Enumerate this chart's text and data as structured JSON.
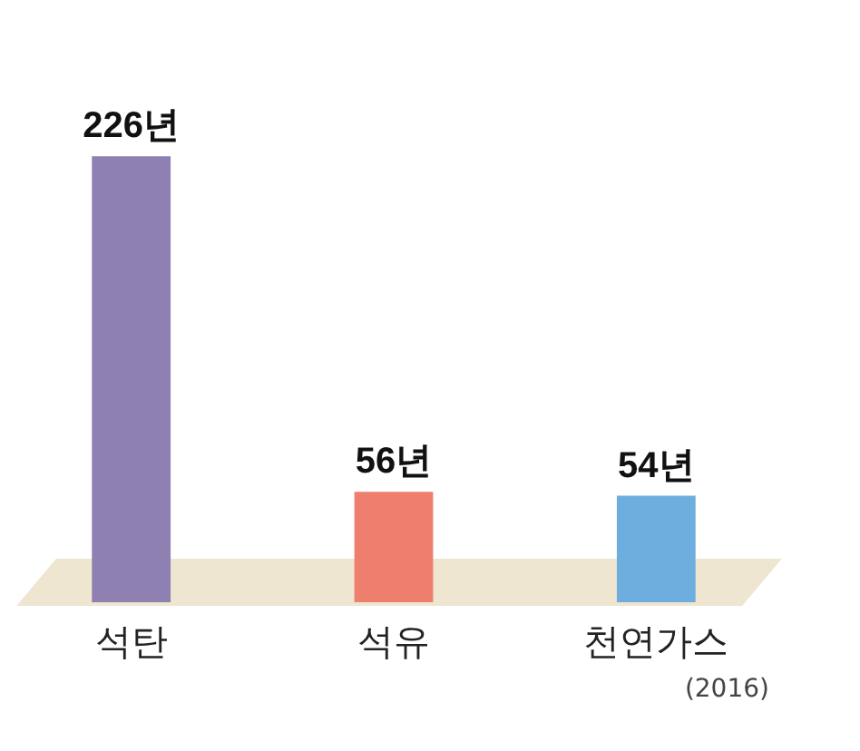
{
  "chart_data": {
    "type": "bar",
    "categories": [
      "석탄",
      "석유",
      "천연가스"
    ],
    "values": [
      226,
      56,
      54
    ],
    "colors": [
      "#8f80b2",
      "#ee7f6e",
      "#6daedf"
    ],
    "value_labels": [
      "226년",
      "56년",
      "54년"
    ],
    "annotations": [
      "(2016)"
    ]
  }
}
